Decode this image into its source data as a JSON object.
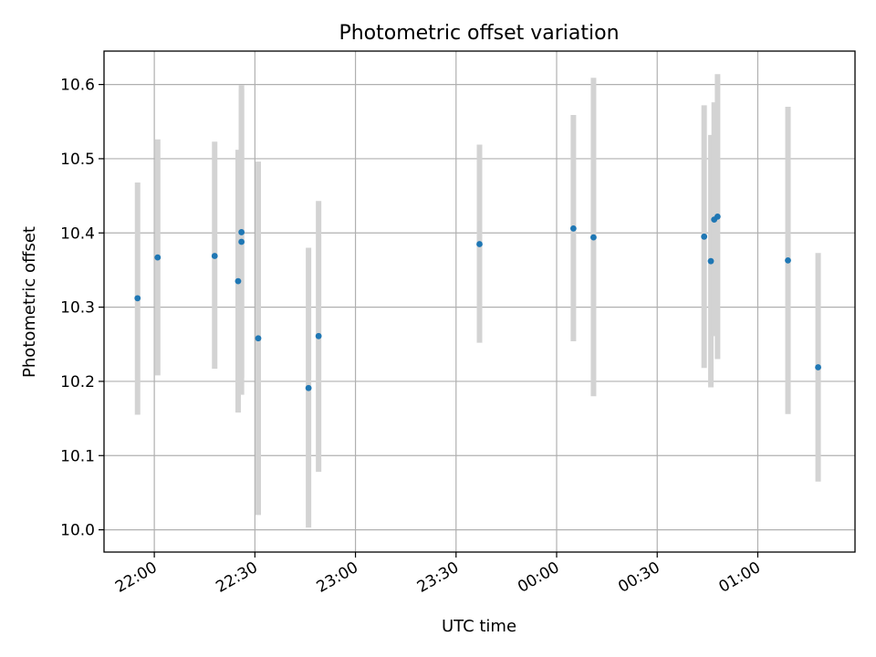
{
  "chart_data": {
    "type": "scatter",
    "title": "Photometric offset variation",
    "xlabel": "UTC time",
    "ylabel": "Photometric offset",
    "x_axis_kind": "time",
    "xlim": [
      "21:45",
      "01:29"
    ],
    "ylim": [
      9.97,
      10.645
    ],
    "xticks": [
      "22:00",
      "22:30",
      "23:00",
      "23:30",
      "00:00",
      "00:30",
      "01:00"
    ],
    "yticks": [
      "10.0",
      "10.1",
      "10.2",
      "10.3",
      "10.4",
      "10.5",
      "10.6"
    ],
    "grid": true,
    "legend": "none",
    "colors": {
      "point": "#1f77b4",
      "errorbar": "#d3d3d3",
      "grid": "#b0b0b0"
    },
    "series": [
      {
        "points": [
          {
            "x": "21:55",
            "y": 10.312,
            "yerr_low": 10.155,
            "yerr_high": 10.468
          },
          {
            "x": "22:01",
            "y": 10.367,
            "yerr_low": 10.208,
            "yerr_high": 10.526
          },
          {
            "x": "22:18",
            "y": 10.369,
            "yerr_low": 10.217,
            "yerr_high": 10.523
          },
          {
            "x": "22:25",
            "y": 10.335,
            "yerr_low": 10.158,
            "yerr_high": 10.512
          },
          {
            "x": "22:26",
            "y": 10.401,
            "yerr_low": 10.205,
            "yerr_high": 10.599
          },
          {
            "x": "22:26",
            "y": 10.388,
            "yerr_low": 10.182,
            "yerr_high": 10.594
          },
          {
            "x": "22:31",
            "y": 10.258,
            "yerr_low": 10.02,
            "yerr_high": 10.496
          },
          {
            "x": "22:46",
            "y": 10.191,
            "yerr_low": 10.003,
            "yerr_high": 10.38
          },
          {
            "x": "22:49",
            "y": 10.261,
            "yerr_low": 10.078,
            "yerr_high": 10.443
          },
          {
            "x": "23:37",
            "y": 10.385,
            "yerr_low": 10.252,
            "yerr_high": 10.519
          },
          {
            "x": "00:05",
            "y": 10.406,
            "yerr_low": 10.254,
            "yerr_high": 10.559
          },
          {
            "x": "00:11",
            "y": 10.394,
            "yerr_low": 10.18,
            "yerr_high": 10.609
          },
          {
            "x": "00:44",
            "y": 10.395,
            "yerr_low": 10.218,
            "yerr_high": 10.572
          },
          {
            "x": "00:46",
            "y": 10.362,
            "yerr_low": 10.192,
            "yerr_high": 10.532
          },
          {
            "x": "00:47",
            "y": 10.418,
            "yerr_low": 10.261,
            "yerr_high": 10.576
          },
          {
            "x": "00:48",
            "y": 10.422,
            "yerr_low": 10.23,
            "yerr_high": 10.614
          },
          {
            "x": "01:09",
            "y": 10.363,
            "yerr_low": 10.156,
            "yerr_high": 10.57
          },
          {
            "x": "01:18",
            "y": 10.219,
            "yerr_low": 10.065,
            "yerr_high": 10.373
          }
        ]
      }
    ]
  }
}
